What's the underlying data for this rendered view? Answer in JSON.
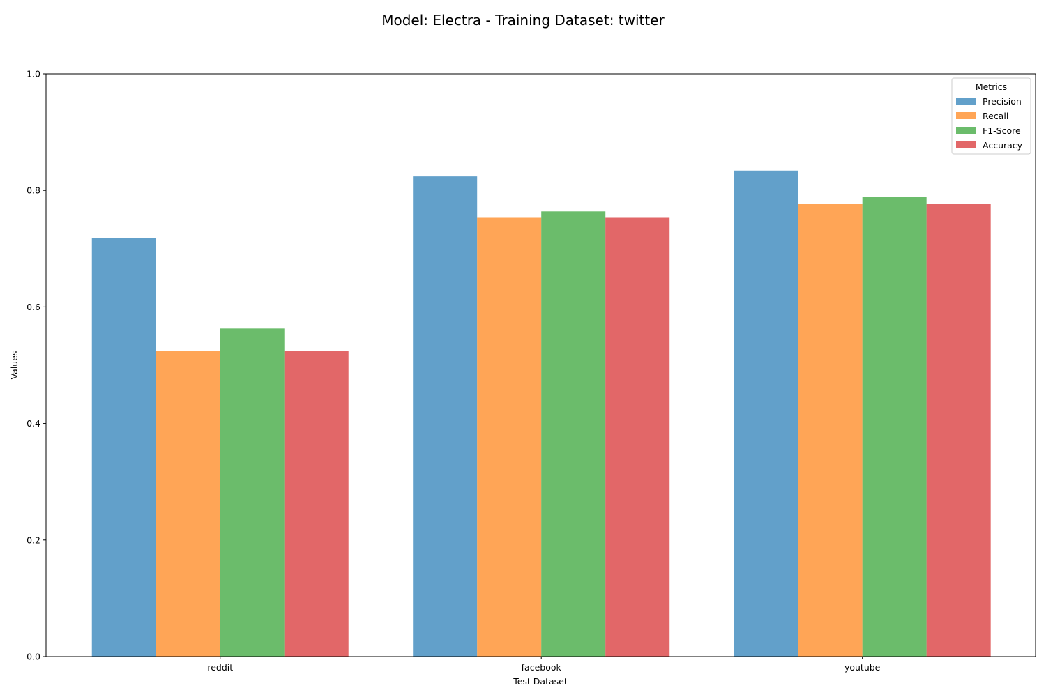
{
  "chart_data": {
    "type": "bar",
    "title": "Model: Electra - Training Dataset: twitter",
    "xlabel": "Test Dataset",
    "ylabel": "Values",
    "categories": [
      "reddit",
      "facebook",
      "youtube"
    ],
    "ylim": [
      0.0,
      1.0
    ],
    "yticks": [
      "0.0",
      "0.2",
      "0.4",
      "0.6",
      "0.8",
      "1.0"
    ],
    "grid": false,
    "legend": {
      "title": "Metrics",
      "placement": "top-right"
    },
    "series": [
      {
        "name": "Precision",
        "color": "#1f77b4",
        "values": [
          0.718,
          0.824,
          0.834
        ]
      },
      {
        "name": "Recall",
        "color": "#ff7f0e",
        "values": [
          0.525,
          0.753,
          0.777
        ]
      },
      {
        "name": "F1-Score",
        "color": "#2ca02c",
        "values": [
          0.563,
          0.764,
          0.789
        ]
      },
      {
        "name": "Accuracy",
        "color": "#d62728",
        "values": [
          0.525,
          0.753,
          0.777
        ]
      }
    ]
  }
}
